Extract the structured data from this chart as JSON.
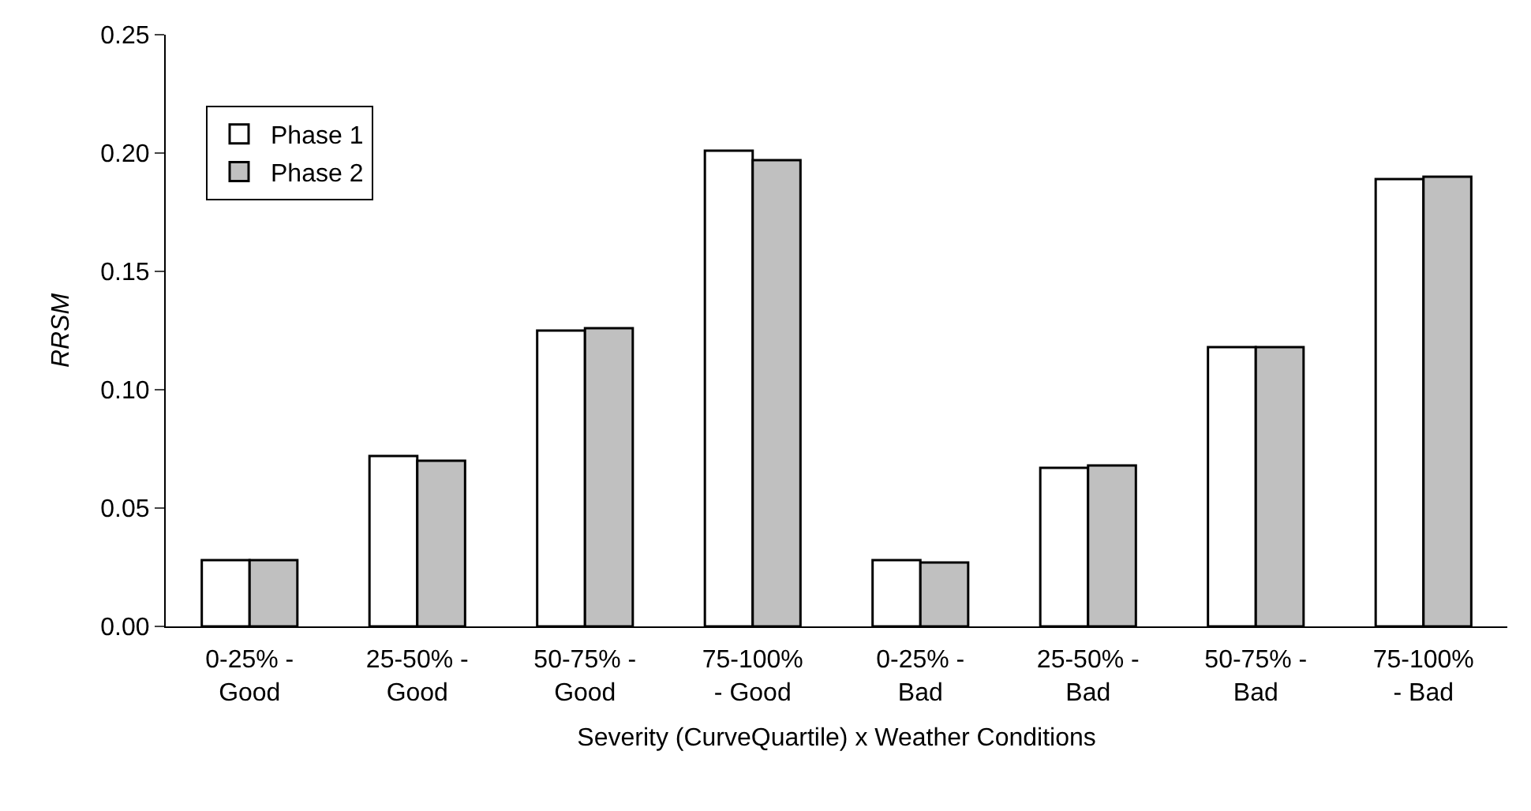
{
  "chart_data": {
    "type": "bar",
    "xlabel": "Severity (CurveQuartile) x Weather Conditions",
    "ylabel": "RRSM",
    "categories": [
      "0-25% -\nGood",
      "25-50% -\nGood",
      "50-75% -\nGood",
      "75-100%\n- Good",
      "0-25% -\nBad",
      "25-50% -\nBad",
      "50-75% -\nBad",
      "75-100%\n- Bad"
    ],
    "series": [
      {
        "name": "Phase 1",
        "color": "#ffffff",
        "values": [
          0.028,
          0.072,
          0.125,
          0.201,
          0.028,
          0.067,
          0.118,
          0.189
        ]
      },
      {
        "name": "Phase 2",
        "color": "#c0c0c0",
        "values": [
          0.028,
          0.07,
          0.126,
          0.197,
          0.027,
          0.068,
          0.118,
          0.19
        ]
      }
    ],
    "ylim": [
      0,
      0.25
    ],
    "yticks": [
      {
        "value": 0,
        "label": "0.00"
      },
      {
        "value": 0.05,
        "label": "0.05"
      },
      {
        "value": 0.1,
        "label": "0.10"
      },
      {
        "value": 0.15,
        "label": "0.15"
      },
      {
        "value": 0.2,
        "label": "0.20"
      },
      {
        "value": 0.25,
        "label": "0.25"
      }
    ],
    "grid": false,
    "legend": "top left"
  }
}
